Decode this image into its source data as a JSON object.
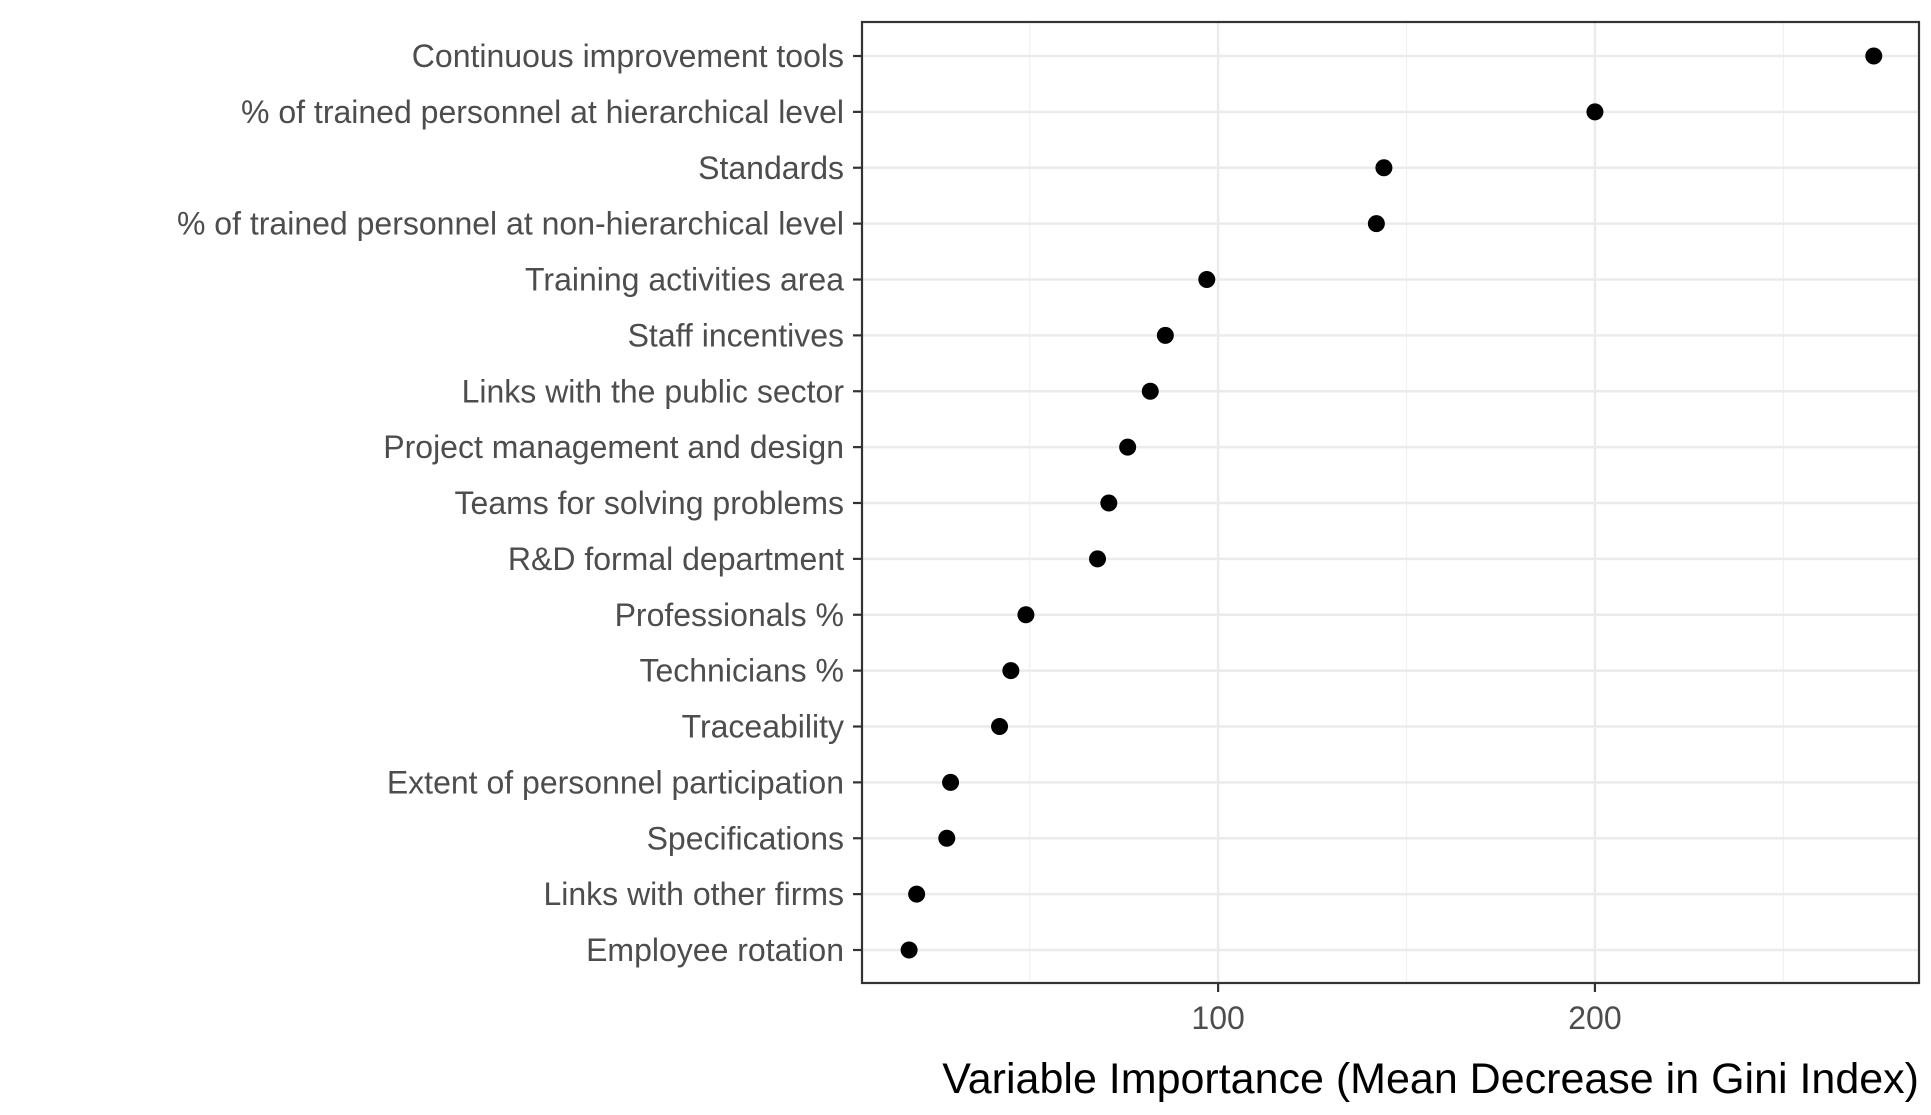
{
  "chart_data": {
    "type": "scatter",
    "title": "",
    "xlabel": "Variable Importance (Mean Decrease in Gini Index)",
    "ylabel": "",
    "xlim": [
      5.5,
      286
    ],
    "x_ticks": [
      100,
      200
    ],
    "x_tick_labels": [
      "100",
      "200"
    ],
    "grid": true,
    "legend": "none",
    "point_color": "#000000",
    "categories": [
      "Continuous improvement tools",
      "% of trained personnel at hierarchical level",
      "Standards",
      "% of trained personnel at non-hierarchical level",
      "Training activities area",
      "Staff incentives",
      "Links with the public sector",
      "Project management and design",
      "Teams for solving problems",
      "R&D formal department",
      "Professionals %",
      "Technicians %",
      "Traceability",
      "Extent of personnel participation",
      "Specifications",
      "Links with other firms",
      "Employee rotation"
    ],
    "values": [
      274,
      200,
      144,
      142,
      97,
      86,
      82,
      76,
      71,
      68,
      49,
      45,
      42,
      29,
      28,
      20,
      18
    ]
  }
}
